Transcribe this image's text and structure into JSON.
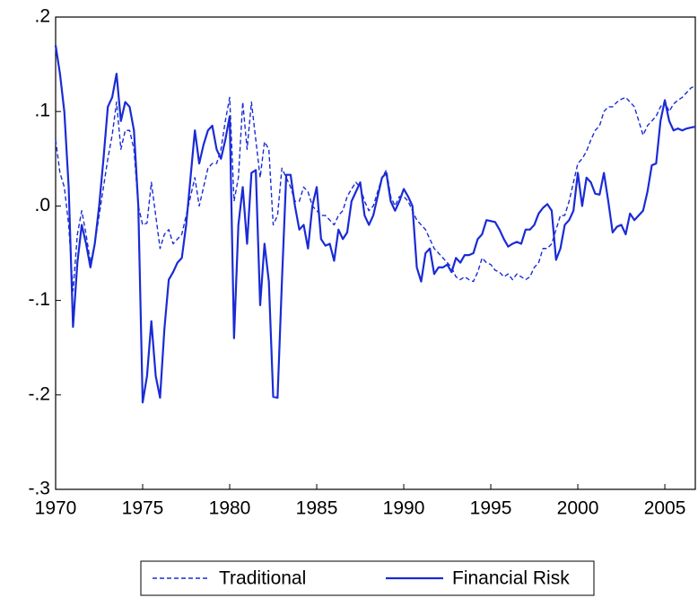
{
  "chart_data": {
    "type": "line",
    "x": [
      1970,
      1970.25,
      1970.5,
      1970.75,
      1971,
      1971.25,
      1971.5,
      1971.75,
      1972,
      1972.25,
      1972.5,
      1972.75,
      1973,
      1973.25,
      1973.5,
      1973.75,
      1974,
      1974.25,
      1974.5,
      1974.75,
      1975,
      1975.25,
      1975.5,
      1975.75,
      1976,
      1976.25,
      1976.5,
      1976.75,
      1977,
      1977.25,
      1977.5,
      1977.75,
      1978,
      1978.25,
      1978.5,
      1978.75,
      1979,
      1979.25,
      1979.5,
      1979.75,
      1980,
      1980.25,
      1980.5,
      1980.75,
      1981,
      1981.25,
      1981.5,
      1981.75,
      1982,
      1982.25,
      1982.5,
      1982.75,
      1983,
      1983.25,
      1983.5,
      1983.75,
      1984,
      1984.25,
      1984.5,
      1984.75,
      1985,
      1985.25,
      1985.5,
      1985.75,
      1986,
      1986.25,
      1986.5,
      1986.75,
      1987,
      1987.25,
      1987.5,
      1987.75,
      1988,
      1988.25,
      1988.5,
      1988.75,
      1989,
      1989.25,
      1989.5,
      1989.75,
      1990,
      1990.25,
      1990.5,
      1990.75,
      1991,
      1991.25,
      1991.5,
      1991.75,
      1992,
      1992.25,
      1992.5,
      1992.75,
      1993,
      1993.25,
      1993.5,
      1993.75,
      1994,
      1994.25,
      1994.5,
      1994.75,
      1995,
      1995.25,
      1995.5,
      1995.75,
      1996,
      1996.25,
      1996.5,
      1996.75,
      1997,
      1997.25,
      1997.5,
      1997.75,
      1998,
      1998.25,
      1998.5,
      1998.75,
      1999,
      1999.25,
      1999.5,
      1999.75,
      2000,
      2000.25,
      2000.5,
      2000.75,
      2001,
      2001.25,
      2001.5,
      2001.75,
      2002,
      2002.25,
      2002.5,
      2002.75,
      2003,
      2003.25,
      2003.5,
      2003.75,
      2004,
      2004.25,
      2004.5,
      2004.75,
      2005,
      2005.25,
      2005.5,
      2005.75,
      2006,
      2006.25,
      2006.5,
      2006.75
    ],
    "series": [
      {
        "name": "Traditional",
        "color": "#1a2bd6",
        "dash": true,
        "values": [
          0.07,
          0.035,
          0.02,
          -0.02,
          -0.09,
          -0.03,
          -0.005,
          -0.03,
          -0.06,
          -0.04,
          -0.01,
          0.02,
          0.05,
          0.075,
          0.11,
          0.06,
          0.08,
          0.08,
          0.06,
          0.0,
          -0.02,
          -0.018,
          0.025,
          -0.01,
          -0.045,
          -0.03,
          -0.025,
          -0.04,
          -0.035,
          -0.03,
          -0.01,
          0.01,
          0.03,
          0.0,
          0.02,
          0.04,
          0.045,
          0.045,
          0.06,
          0.09,
          0.115,
          0.005,
          0.03,
          0.11,
          0.06,
          0.11,
          0.07,
          0.03,
          0.068,
          0.06,
          -0.02,
          -0.01,
          0.04,
          0.03,
          0.02,
          0.005,
          0.005,
          0.02,
          0.015,
          0.0,
          -0.005,
          -0.01,
          -0.01,
          -0.015,
          -0.02,
          -0.01,
          -0.005,
          0.01,
          0.018,
          0.025,
          0.02,
          0.005,
          -0.005,
          0.0,
          0.015,
          0.03,
          0.038,
          0.01,
          0.0,
          0.01,
          0.01,
          0.005,
          -0.005,
          -0.015,
          -0.02,
          -0.025,
          -0.035,
          -0.045,
          -0.05,
          -0.055,
          -0.06,
          -0.065,
          -0.075,
          -0.078,
          -0.075,
          -0.078,
          -0.08,
          -0.07,
          -0.055,
          -0.06,
          -0.062,
          -0.068,
          -0.07,
          -0.075,
          -0.072,
          -0.078,
          -0.072,
          -0.075,
          -0.078,
          -0.075,
          -0.065,
          -0.06,
          -0.045,
          -0.045,
          -0.04,
          -0.025,
          -0.01,
          -0.01,
          0.005,
          0.025,
          0.045,
          0.05,
          0.058,
          0.07,
          0.08,
          0.085,
          0.1,
          0.105,
          0.105,
          0.11,
          0.113,
          0.115,
          0.11,
          0.105,
          0.09,
          0.075,
          0.085,
          0.09,
          0.095,
          0.105,
          0.11,
          0.1,
          0.108,
          0.112,
          0.115,
          0.12,
          0.125,
          0.127
        ]
      },
      {
        "name": "Financial Risk",
        "color": "#1a2bd6",
        "dash": false,
        "values": [
          0.17,
          0.14,
          0.1,
          0.02,
          -0.128,
          -0.06,
          -0.02,
          -0.04,
          -0.065,
          -0.04,
          0.0,
          0.05,
          0.105,
          0.115,
          0.14,
          0.09,
          0.11,
          0.105,
          0.08,
          0.0,
          -0.208,
          -0.18,
          -0.122,
          -0.18,
          -0.203,
          -0.13,
          -0.078,
          -0.07,
          -0.06,
          -0.055,
          -0.02,
          0.03,
          0.08,
          0.045,
          0.065,
          0.08,
          0.085,
          0.06,
          0.05,
          0.07,
          0.095,
          -0.14,
          -0.02,
          0.02,
          -0.04,
          0.035,
          0.038,
          -0.105,
          -0.04,
          -0.08,
          -0.202,
          -0.203,
          -0.08,
          0.033,
          0.033,
          0.0,
          -0.025,
          -0.02,
          -0.045,
          0.0,
          0.02,
          -0.035,
          -0.042,
          -0.04,
          -0.058,
          -0.025,
          -0.035,
          -0.028,
          0.005,
          0.015,
          0.025,
          -0.01,
          -0.02,
          -0.01,
          0.01,
          0.03,
          0.035,
          0.005,
          -0.005,
          0.005,
          0.018,
          0.01,
          0.0,
          -0.065,
          -0.08,
          -0.05,
          -0.045,
          -0.072,
          -0.065,
          -0.065,
          -0.062,
          -0.07,
          -0.055,
          -0.06,
          -0.052,
          -0.052,
          -0.05,
          -0.035,
          -0.03,
          -0.015,
          -0.016,
          -0.017,
          -0.025,
          -0.035,
          -0.043,
          -0.04,
          -0.038,
          -0.04,
          -0.025,
          -0.025,
          -0.02,
          -0.008,
          -0.002,
          0.002,
          -0.005,
          -0.057,
          -0.045,
          -0.02,
          -0.015,
          -0.005,
          0.035,
          0.0,
          0.03,
          0.025,
          0.013,
          0.012,
          0.035,
          0.005,
          -0.028,
          -0.022,
          -0.02,
          -0.03,
          -0.008,
          -0.015,
          -0.01,
          -0.005,
          0.015,
          0.043,
          0.045,
          0.09,
          0.112,
          0.09,
          0.08,
          0.082,
          0.08,
          0.082,
          0.083,
          0.084
        ]
      }
    ],
    "xlim": [
      1970,
      2006.75
    ],
    "xticks": [
      1970,
      1975,
      1980,
      1985,
      1990,
      1995,
      2000,
      2005
    ],
    "ylim": [
      -0.3,
      0.2
    ],
    "yticks": [
      {
        "value": -0.3,
        "label": "-.3"
      },
      {
        "value": -0.2,
        "label": "-.2"
      },
      {
        "value": -0.1,
        "label": "-.1"
      },
      {
        "value": 0,
        "label": ".0"
      },
      {
        "value": 0.1,
        "label": ".1"
      },
      {
        "value": 0.2,
        "label": ".2"
      }
    ],
    "legend": "bottom"
  }
}
